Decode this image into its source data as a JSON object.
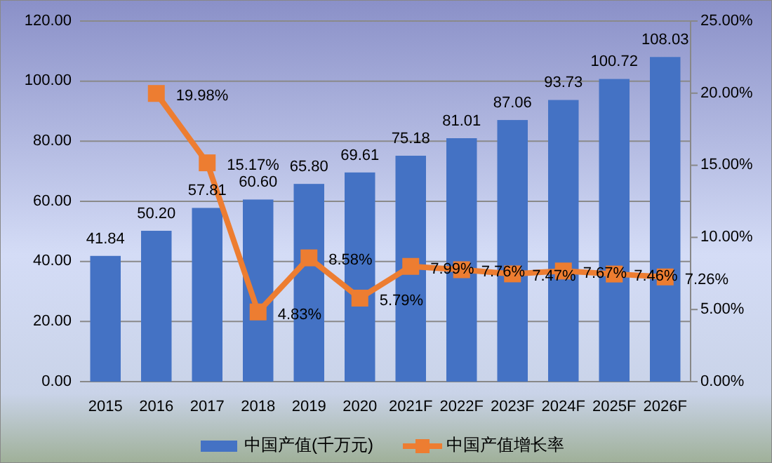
{
  "chart_data": {
    "type": "bar",
    "categories": [
      "2015",
      "2016",
      "2017",
      "2018",
      "2019",
      "2020",
      "2021F",
      "2022F",
      "2023F",
      "2024F",
      "2025F",
      "2026F"
    ],
    "series": [
      {
        "name": "中国产值(千万元)",
        "color": "#4472c4",
        "values": [
          41.84,
          50.2,
          57.81,
          60.6,
          65.8,
          69.61,
          75.18,
          81.01,
          87.06,
          93.73,
          100.72,
          108.03
        ],
        "value_labels": [
          "41.84",
          "50.20",
          "57.81",
          "60.60",
          "65.80",
          "69.61",
          "75.18",
          "81.01",
          "87.06",
          "93.73",
          "100.72",
          "108.03"
        ]
      },
      {
        "name": "中国产值增长率",
        "type": "line",
        "axis": "y2",
        "color": "#ed7d31",
        "marker": "square",
        "values": [
          null,
          19.98,
          15.17,
          4.83,
          8.58,
          5.79,
          7.99,
          7.76,
          7.47,
          7.67,
          7.46,
          7.26
        ],
        "value_labels": [
          null,
          "19.98%",
          "15.17%",
          "4.83%",
          "8.58%",
          "5.79%",
          "7.99%",
          "7.76%",
          "7.47%",
          "7.67%",
          "7.46%",
          "7.26%"
        ]
      }
    ],
    "ylim": [
      0,
      120
    ],
    "yticks": [
      {
        "value": 0,
        "label": "0.00"
      },
      {
        "value": 20,
        "label": "20.00"
      },
      {
        "value": 40,
        "label": "40.00"
      },
      {
        "value": 60,
        "label": "60.00"
      },
      {
        "value": 80,
        "label": "80.00"
      },
      {
        "value": 100,
        "label": "100.00"
      },
      {
        "value": 120,
        "label": "120.00"
      }
    ],
    "y2lim": [
      0,
      25
    ],
    "y2ticks": [
      {
        "value": 0,
        "label": "0.00%"
      },
      {
        "value": 5,
        "label": "5.00%"
      },
      {
        "value": 10,
        "label": "10.00%"
      },
      {
        "value": 15,
        "label": "15.00%"
      },
      {
        "value": 20,
        "label": "20.00%"
      },
      {
        "value": 25,
        "label": "25.00%"
      }
    ],
    "grid": "y",
    "legend": "bottom"
  }
}
